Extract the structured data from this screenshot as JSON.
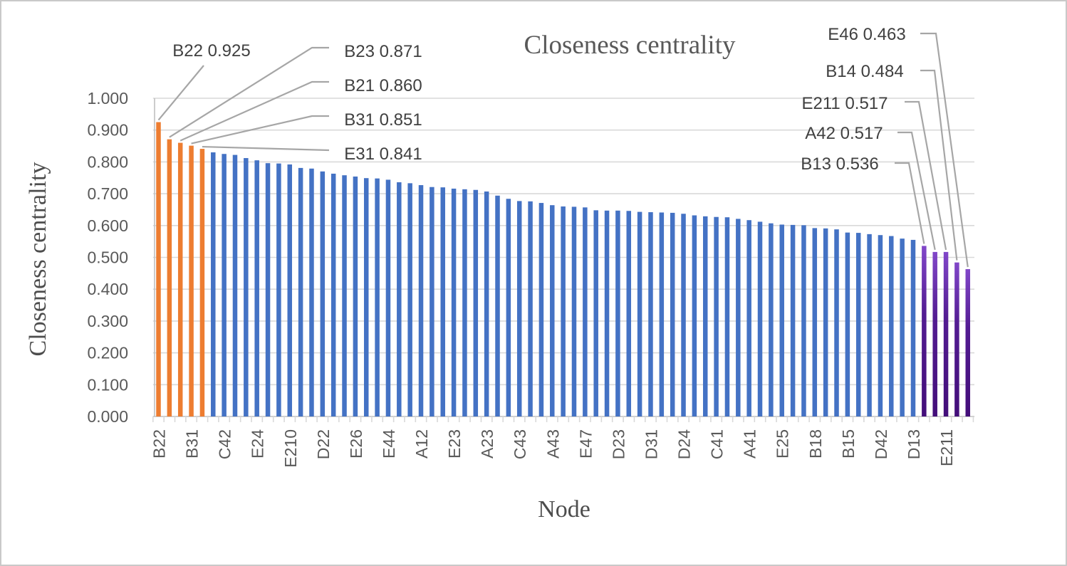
{
  "figure": {
    "title": "Closeness centrality",
    "x_axis_title": "Node",
    "y_axis_title": "Closeness centrality"
  },
  "colors": {
    "bar_blue": "#4472C4",
    "bar_orange": "#ED7D31",
    "bar_purple_top": "#8147C9",
    "bar_purple_mid": "#531C92",
    "bar_purple_bottom": "#430E79",
    "gridline": "#D9D9D9",
    "axis_line": "#BFBFBF",
    "leader_line": "#A6A6A6",
    "title_text": "#595959",
    "tick_text": "#595959",
    "callout_text": "#404040"
  },
  "chart_data": {
    "type": "bar",
    "title": "Closeness centrality",
    "xlabel": "Node",
    "ylabel": "Closeness centrality",
    "ylim": [
      0.0,
      1.0
    ],
    "y_tick_labels": [
      "1.000",
      "0.900",
      "0.800",
      "0.700",
      "0.600",
      "0.500",
      "0.400",
      "0.300",
      "0.200",
      "0.100",
      "0.000"
    ],
    "x_label_interval": 3,
    "grid": "horizontal",
    "legend_position": "none",
    "nodes": [
      [
        "B22",
        0.925,
        "orange"
      ],
      [
        "B23",
        0.871,
        "orange"
      ],
      [
        "B21",
        0.86,
        "orange"
      ],
      [
        "B31",
        0.851,
        "orange"
      ],
      [
        "E31",
        0.841,
        "orange"
      ],
      [
        "",
        0.83,
        "blue"
      ],
      [
        "C42",
        0.825,
        "blue"
      ],
      [
        "",
        0.822,
        "blue"
      ],
      [
        "",
        0.812,
        "blue"
      ],
      [
        "E24",
        0.805,
        "blue"
      ],
      [
        "",
        0.796,
        "blue"
      ],
      [
        "",
        0.795,
        "blue"
      ],
      [
        "E210",
        0.792,
        "blue"
      ],
      [
        "",
        0.781,
        "blue"
      ],
      [
        "",
        0.779,
        "blue"
      ],
      [
        "D22",
        0.77,
        "blue"
      ],
      [
        "",
        0.763,
        "blue"
      ],
      [
        "",
        0.758,
        "blue"
      ],
      [
        "E26",
        0.754,
        "blue"
      ],
      [
        "",
        0.749,
        "blue"
      ],
      [
        "",
        0.748,
        "blue"
      ],
      [
        "E44",
        0.744,
        "blue"
      ],
      [
        "",
        0.736,
        "blue"
      ],
      [
        "",
        0.733,
        "blue"
      ],
      [
        "A12",
        0.727,
        "blue"
      ],
      [
        "",
        0.721,
        "blue"
      ],
      [
        "",
        0.72,
        "blue"
      ],
      [
        "E23",
        0.716,
        "blue"
      ],
      [
        "",
        0.714,
        "blue"
      ],
      [
        "",
        0.712,
        "blue"
      ],
      [
        "A23",
        0.707,
        "blue"
      ],
      [
        "",
        0.694,
        "blue"
      ],
      [
        "",
        0.684,
        "blue"
      ],
      [
        "C43",
        0.677,
        "blue"
      ],
      [
        "",
        0.676,
        "blue"
      ],
      [
        "",
        0.671,
        "blue"
      ],
      [
        "A43",
        0.664,
        "blue"
      ],
      [
        "",
        0.66,
        "blue"
      ],
      [
        "",
        0.659,
        "blue"
      ],
      [
        "E47",
        0.657,
        "blue"
      ],
      [
        "",
        0.648,
        "blue"
      ],
      [
        "",
        0.647,
        "blue"
      ],
      [
        "D23",
        0.647,
        "blue"
      ],
      [
        "",
        0.646,
        "blue"
      ],
      [
        "",
        0.643,
        "blue"
      ],
      [
        "D31",
        0.642,
        "blue"
      ],
      [
        "",
        0.641,
        "blue"
      ],
      [
        "",
        0.64,
        "blue"
      ],
      [
        "D24",
        0.637,
        "blue"
      ],
      [
        "",
        0.632,
        "blue"
      ],
      [
        "",
        0.629,
        "blue"
      ],
      [
        "C41",
        0.627,
        "blue"
      ],
      [
        "",
        0.626,
        "blue"
      ],
      [
        "",
        0.621,
        "blue"
      ],
      [
        "A41",
        0.617,
        "blue"
      ],
      [
        "",
        0.612,
        "blue"
      ],
      [
        "",
        0.607,
        "blue"
      ],
      [
        "E25",
        0.603,
        "blue"
      ],
      [
        "",
        0.602,
        "blue"
      ],
      [
        "",
        0.601,
        "blue"
      ],
      [
        "B18",
        0.592,
        "blue"
      ],
      [
        "",
        0.591,
        "blue"
      ],
      [
        "",
        0.588,
        "blue"
      ],
      [
        "B15",
        0.578,
        "blue"
      ],
      [
        "",
        0.577,
        "blue"
      ],
      [
        "",
        0.573,
        "blue"
      ],
      [
        "D42",
        0.57,
        "blue"
      ],
      [
        "",
        0.567,
        "blue"
      ],
      [
        "",
        0.559,
        "blue"
      ],
      [
        "D13",
        0.555,
        "blue"
      ],
      [
        "B13",
        0.536,
        "purple"
      ],
      [
        "A42",
        0.517,
        "purple"
      ],
      [
        "E211",
        0.517,
        "purple"
      ],
      [
        "B14",
        0.484,
        "purple"
      ],
      [
        "E46",
        0.463,
        "purple"
      ]
    ],
    "callouts": {
      "left": [
        {
          "text": "B22 0.925",
          "node": "B22",
          "value": 0.925,
          "bar_index": 0
        },
        {
          "text": "B23 0.871",
          "node": "B23",
          "value": 0.871,
          "bar_index": 1
        },
        {
          "text": "B21 0.860",
          "node": "B21",
          "value": 0.86,
          "bar_index": 2
        },
        {
          "text": "B31 0.851",
          "node": "B31",
          "value": 0.851,
          "bar_index": 3
        },
        {
          "text": "E31 0.841",
          "node": "E31",
          "value": 0.841,
          "bar_index": 4
        }
      ],
      "right": [
        {
          "text": "E46 0.463",
          "node": "E46",
          "value": 0.463,
          "bar_index": 74
        },
        {
          "text": "B14 0.484",
          "node": "B14",
          "value": 0.484,
          "bar_index": 73
        },
        {
          "text": "E211 0.517",
          "node": "E211",
          "value": 0.517,
          "bar_index": 72
        },
        {
          "text": "A42 0.517",
          "node": "A42",
          "value": 0.517,
          "bar_index": 71
        },
        {
          "text": "B13 0.536",
          "node": "B13",
          "value": 0.536,
          "bar_index": 70
        }
      ]
    }
  }
}
